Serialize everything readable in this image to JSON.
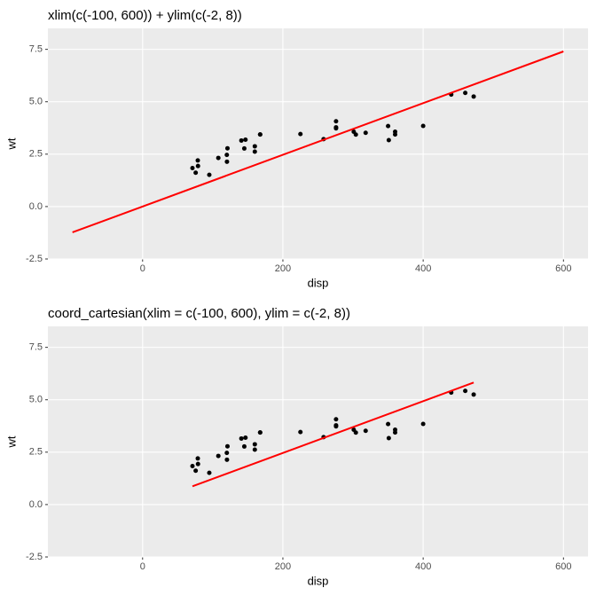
{
  "chart_data": [
    {
      "type": "scatter",
      "title": "xlim(c(-100, 600)) + ylim(c(-2, 8))",
      "x_label": "disp",
      "y_label": "wt",
      "xlim": [
        -135,
        635
      ],
      "ylim": [
        -2.5,
        8.5
      ],
      "xticks": [
        0,
        200,
        400,
        600
      ],
      "yticks": [
        -2.5,
        {
          "value": 0,
          "label": "0.0"
        },
        2.5,
        {
          "value": 5,
          "label": "5.0"
        },
        7.5
      ],
      "grid": true,
      "points": {
        "color": "#000000",
        "x": [
          160,
          160,
          108,
          258,
          360,
          225,
          360,
          146.7,
          140.8,
          167.6,
          167.6,
          275.8,
          275.8,
          275.8,
          472,
          460,
          440,
          78.7,
          75.7,
          71.1,
          120.1,
          318,
          304,
          350,
          400,
          79,
          120.3,
          95.1,
          351,
          145,
          301,
          121
        ],
        "y": [
          2.62,
          2.875,
          2.32,
          3.215,
          3.44,
          3.46,
          3.57,
          3.19,
          3.15,
          3.44,
          3.44,
          4.07,
          3.73,
          3.78,
          5.25,
          5.424,
          5.345,
          2.2,
          1.615,
          1.835,
          2.465,
          3.52,
          3.435,
          3.84,
          3.845,
          1.935,
          2.14,
          1.513,
          3.17,
          2.77,
          3.57,
          2.78
        ]
      },
      "line": {
        "color": "#ff0000",
        "x": [
          -100,
          600
        ],
        "y": [
          -1.23,
          7.4
        ]
      }
    },
    {
      "type": "scatter",
      "title": "coord_cartesian(xlim = c(-100, 600), ylim = c(-2, 8))",
      "x_label": "disp",
      "y_label": "wt",
      "xlim": [
        -135,
        635
      ],
      "ylim": [
        -2.5,
        8.5
      ],
      "xticks": [
        0,
        200,
        400,
        600
      ],
      "yticks": [
        -2.5,
        {
          "value": 0,
          "label": "0.0"
        },
        2.5,
        {
          "value": 5,
          "label": "5.0"
        },
        7.5
      ],
      "grid": true,
      "points": {
        "color": "#000000",
        "x": [
          160,
          160,
          108,
          258,
          360,
          225,
          360,
          146.7,
          140.8,
          167.6,
          167.6,
          275.8,
          275.8,
          275.8,
          472,
          460,
          440,
          78.7,
          75.7,
          71.1,
          120.1,
          318,
          304,
          350,
          400,
          79,
          120.3,
          95.1,
          351,
          145,
          301,
          121
        ],
        "y": [
          2.62,
          2.875,
          2.32,
          3.215,
          3.44,
          3.46,
          3.57,
          3.19,
          3.15,
          3.44,
          3.44,
          4.07,
          3.73,
          3.78,
          5.25,
          5.424,
          5.345,
          2.2,
          1.615,
          1.835,
          2.465,
          3.52,
          3.435,
          3.84,
          3.845,
          1.935,
          2.14,
          1.513,
          3.17,
          2.77,
          3.57,
          2.78
        ]
      },
      "line": {
        "color": "#ff0000",
        "x": [
          71.1,
          472
        ],
        "y": [
          0.87,
          5.82
        ]
      }
    }
  ]
}
